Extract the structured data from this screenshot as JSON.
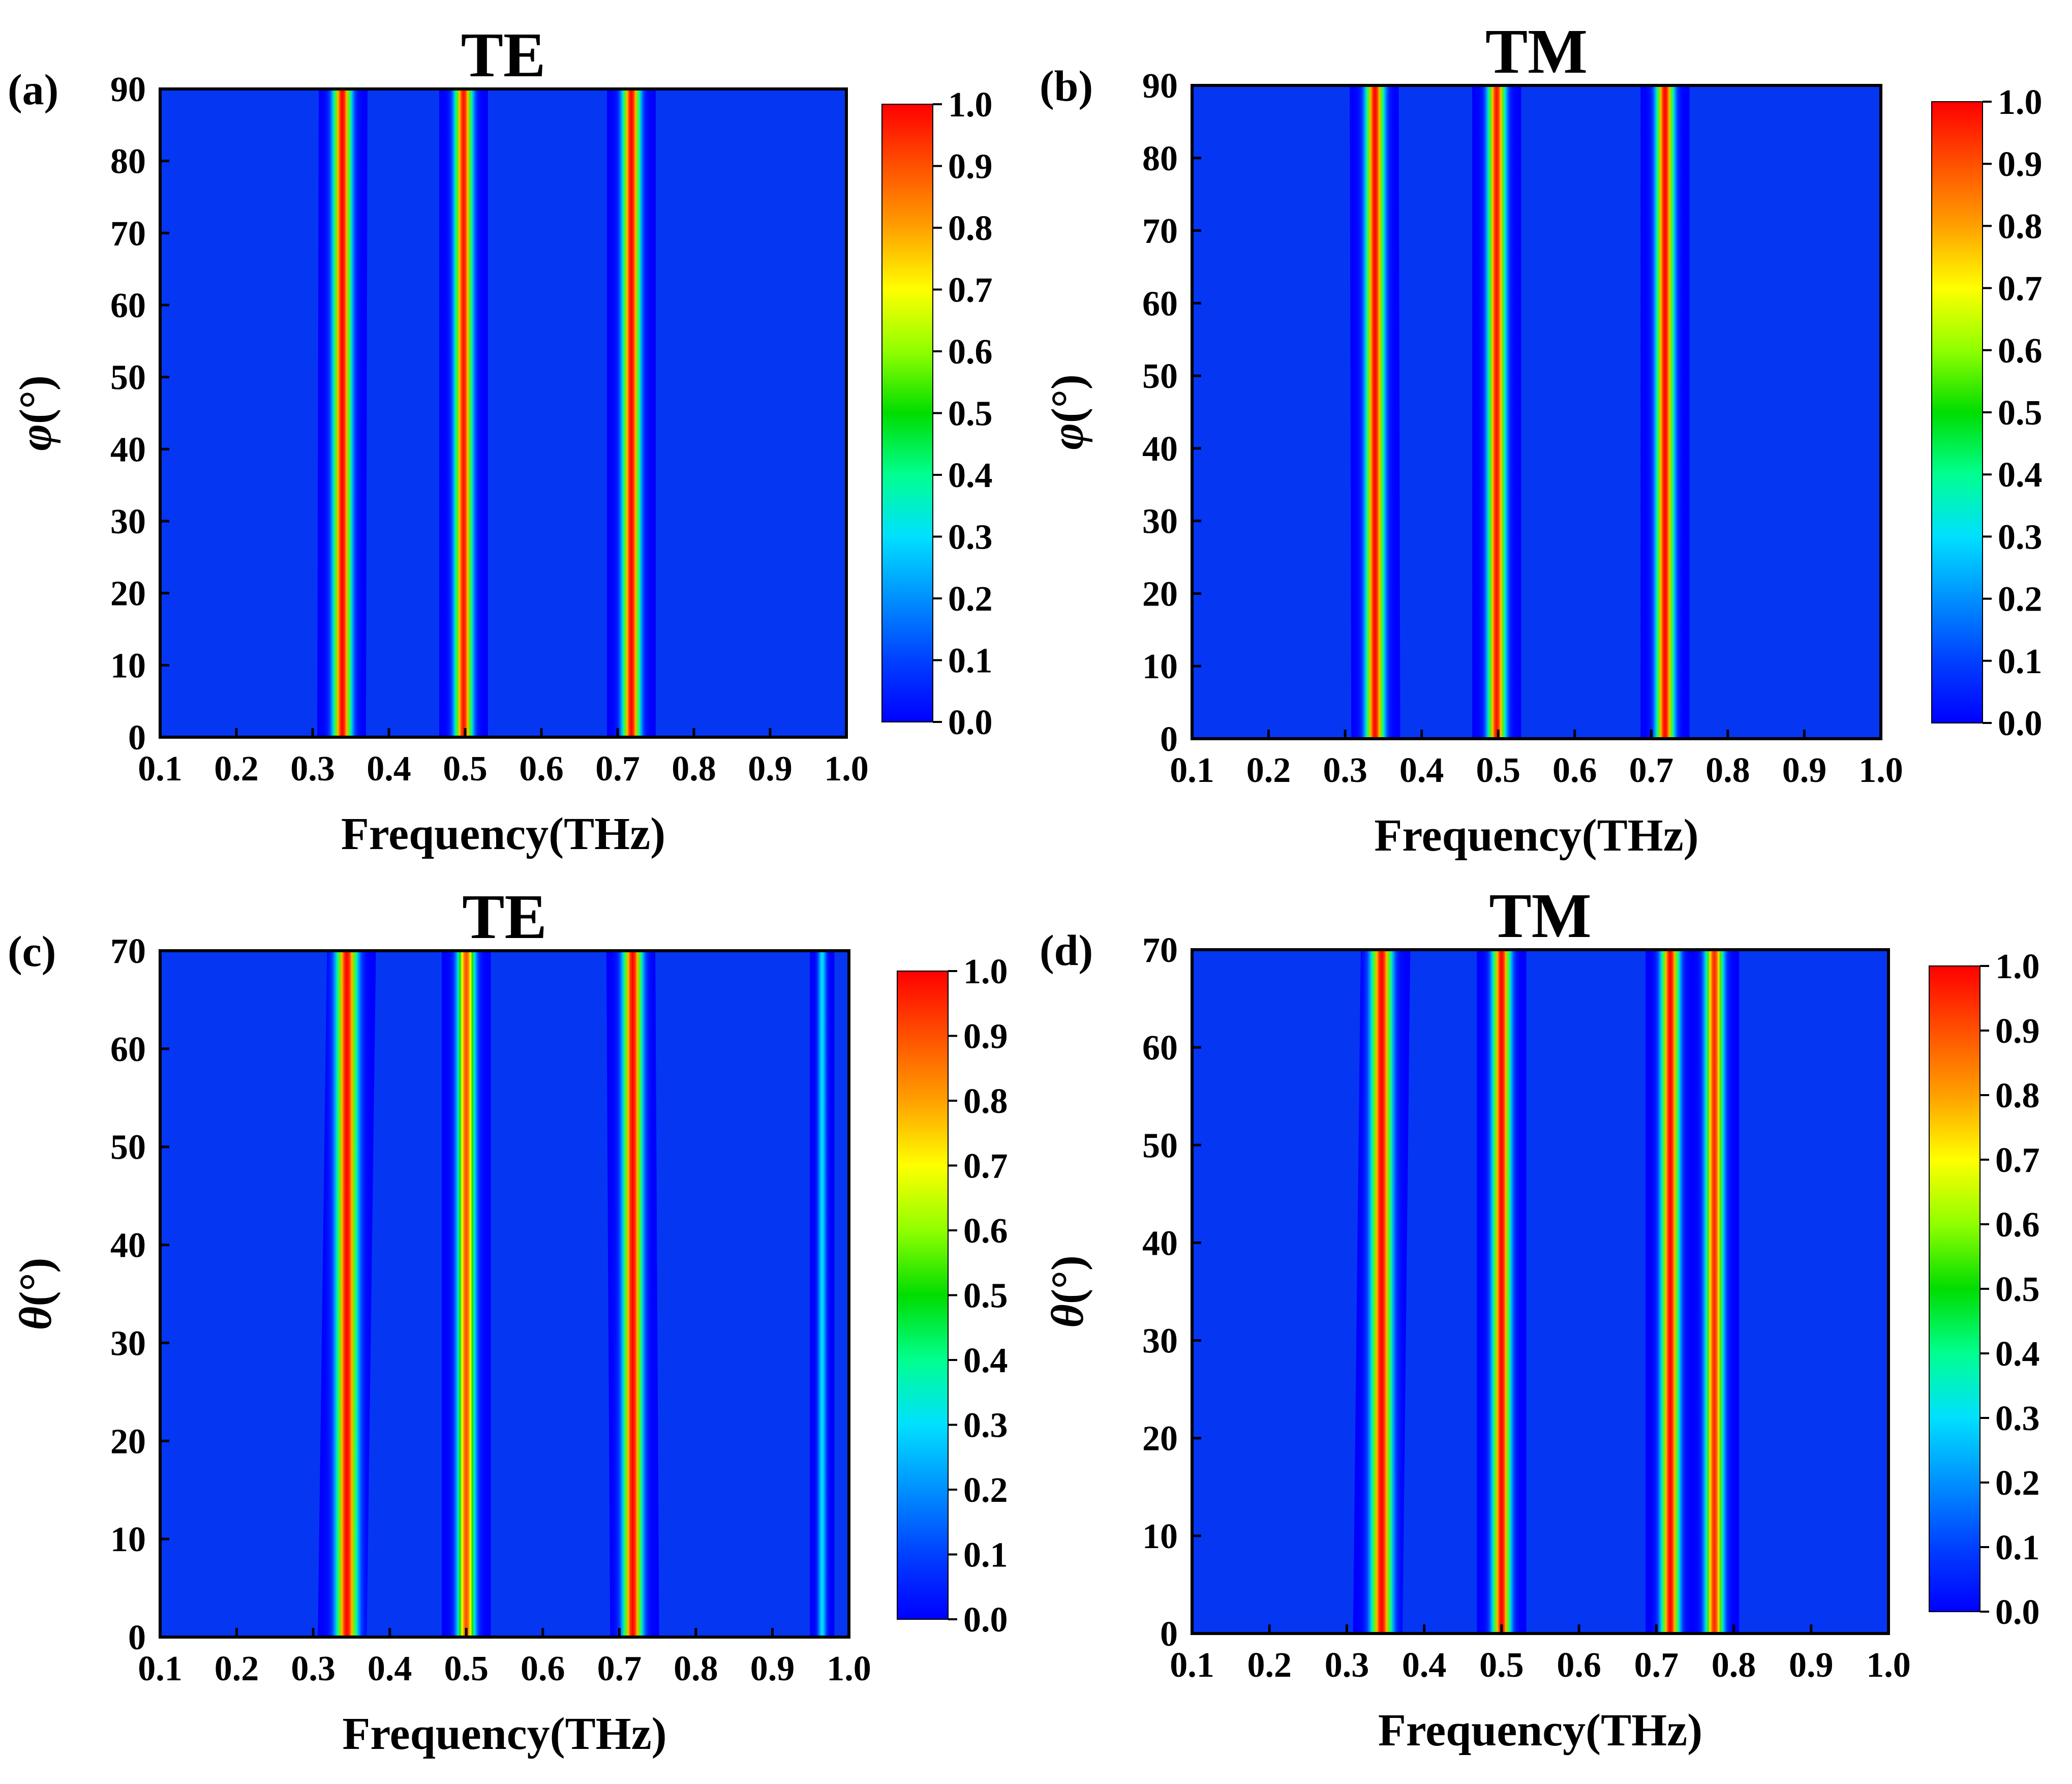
{
  "figure": {
    "colormap": [
      "#0000ff",
      "#0040ff",
      "#0090ff",
      "#00e0ff",
      "#00ff90",
      "#00dd00",
      "#90ff00",
      "#ffff00",
      "#ffa000",
      "#ff5000",
      "#ff0000"
    ],
    "background_color": "#0536f2"
  },
  "chart_data": [
    {
      "type": "heatmap",
      "panel_label": "(a)",
      "title": "TE",
      "xlabel": "Frequency(THz)",
      "ylabel_symbol": "φ",
      "ylabel_unit": "(°)",
      "xlim": [
        0.1,
        1.0
      ],
      "ylim": [
        0,
        90
      ],
      "xticks": [
        "0.1",
        "0.2",
        "0.3",
        "0.4",
        "0.5",
        "0.6",
        "0.7",
        "0.8",
        "0.9",
        "1.0"
      ],
      "yticks": [
        "0",
        "10",
        "20",
        "30",
        "40",
        "50",
        "60",
        "70",
        "80",
        "90"
      ],
      "colorbar": {
        "range": [
          0.0,
          1.0
        ],
        "ticks": [
          "0.0",
          "0.1",
          "0.2",
          "0.3",
          "0.4",
          "0.5",
          "0.6",
          "0.7",
          "0.8",
          "0.9",
          "1.0"
        ]
      },
      "resonances": [
        {
          "center_low": 0.338,
          "center_high": 0.34,
          "peak": 1.0
        },
        {
          "center_low": 0.498,
          "center_high": 0.498,
          "peak": 0.98
        },
        {
          "center_low": 0.718,
          "center_high": 0.718,
          "peak": 1.0
        }
      ]
    },
    {
      "type": "heatmap",
      "panel_label": "(b)",
      "title": "TM",
      "xlabel": "Frequency(THz)",
      "ylabel_symbol": "φ",
      "ylabel_unit": "(°)",
      "xlim": [
        0.1,
        1.0
      ],
      "ylim": [
        0,
        90
      ],
      "xticks": [
        "0.1",
        "0.2",
        "0.3",
        "0.4",
        "0.5",
        "0.6",
        "0.7",
        "0.8",
        "0.9",
        "1.0"
      ],
      "yticks": [
        "0",
        "10",
        "20",
        "30",
        "40",
        "50",
        "60",
        "70",
        "80",
        "90"
      ],
      "colorbar": {
        "range": [
          0.0,
          1.0
        ],
        "ticks": [
          "0.0",
          "0.1",
          "0.2",
          "0.3",
          "0.4",
          "0.5",
          "0.6",
          "0.7",
          "0.8",
          "0.9",
          "1.0"
        ]
      },
      "resonances": [
        {
          "center_low": 0.34,
          "center_high": 0.338,
          "peak": 1.0
        },
        {
          "center_low": 0.498,
          "center_high": 0.498,
          "peak": 0.98
        },
        {
          "center_low": 0.718,
          "center_high": 0.718,
          "peak": 1.0
        }
      ]
    },
    {
      "type": "heatmap",
      "panel_label": "(c)",
      "title": "TE",
      "xlabel": "Frequency(THz)",
      "ylabel_symbol": "θ",
      "ylabel_unit": "(°)",
      "xlim": [
        0.1,
        1.0
      ],
      "ylim": [
        0,
        70
      ],
      "xticks": [
        "0.1",
        "0.2",
        "0.3",
        "0.4",
        "0.5",
        "0.6",
        "0.7",
        "0.8",
        "0.9",
        "1.0"
      ],
      "yticks": [
        "0",
        "10",
        "20",
        "30",
        "40",
        "50",
        "60",
        "70"
      ],
      "colorbar": {
        "range": [
          0.0,
          1.0
        ],
        "ticks": [
          "0.0",
          "0.1",
          "0.2",
          "0.3",
          "0.4",
          "0.5",
          "0.6",
          "0.7",
          "0.8",
          "0.9",
          "1.0"
        ]
      },
      "resonances": [
        {
          "center_low": 0.338,
          "center_high": 0.35,
          "peak": 1.0
        },
        {
          "center_low": 0.5,
          "center_high": 0.5,
          "peak": 0.9
        },
        {
          "center_low": 0.72,
          "center_high": 0.715,
          "peak": 1.0
        },
        {
          "center_low": 0.965,
          "center_high": 0.965,
          "peak": 0.3
        }
      ]
    },
    {
      "type": "heatmap",
      "panel_label": "(d)",
      "title": "TM",
      "xlabel": "Frequency(THz)",
      "ylabel_symbol": "θ",
      "ylabel_unit": "(°)",
      "xlim": [
        0.1,
        1.0
      ],
      "ylim": [
        0,
        70
      ],
      "xticks": [
        "0.1",
        "0.2",
        "0.3",
        "0.4",
        "0.5",
        "0.6",
        "0.7",
        "0.8",
        "0.9",
        "1.0"
      ],
      "yticks": [
        "0",
        "10",
        "20",
        "30",
        "40",
        "50",
        "60",
        "70"
      ],
      "colorbar": {
        "range": [
          0.0,
          1.0
        ],
        "ticks": [
          "0.0",
          "0.1",
          "0.2",
          "0.3",
          "0.4",
          "0.5",
          "0.6",
          "0.7",
          "0.8",
          "0.9",
          "1.0"
        ]
      },
      "resonances": [
        {
          "center_low": 0.34,
          "center_high": 0.35,
          "peak": 1.0
        },
        {
          "center_low": 0.5,
          "center_high": 0.5,
          "peak": 1.0
        },
        {
          "center_low": 0.718,
          "center_high": 0.718,
          "peak": 1.0
        },
        {
          "center_low": 0.775,
          "center_high": 0.775,
          "peak": 0.95
        }
      ]
    }
  ]
}
